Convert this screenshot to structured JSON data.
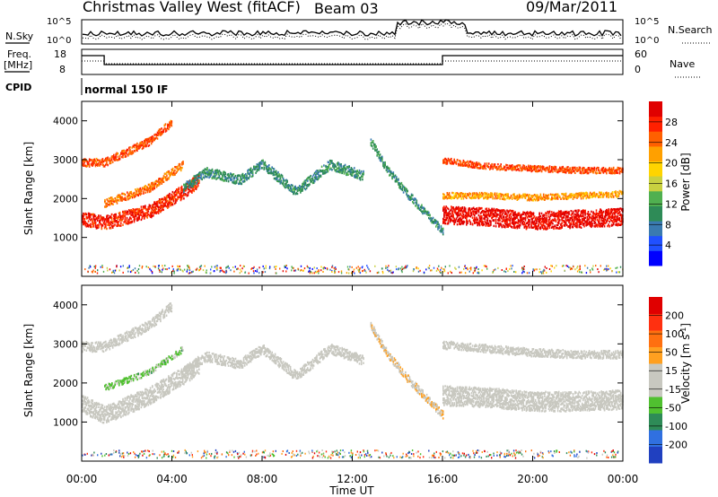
{
  "header": {
    "title": "Christmas Valley West (fitACF)",
    "beam": "Beam 03",
    "date": "09/Mar/2011"
  },
  "noise_panel": {
    "left_label": "N.Sky",
    "right_label": "N.Search",
    "left_ticks": [
      "10^5",
      "10^0"
    ],
    "right_ticks": [
      "10^5",
      "10^0"
    ]
  },
  "freq_panel": {
    "left_label_1": "Freq.",
    "left_label_2": "[MHz]",
    "left_ticks": [
      "18",
      "8"
    ],
    "right_label": "Nave",
    "right_ticks": [
      "60",
      "0"
    ]
  },
  "cpid_panel": {
    "label": "CPID",
    "text": "normal 150 IF"
  },
  "colors": {
    "power_scale": [
      "#0000ff",
      "#2050ff",
      "#3a7ab0",
      "#2e8b57",
      "#50b050",
      "#c8d040",
      "#ffd400",
      "#ffa000",
      "#ff6000",
      "#ff2000",
      "#e00000"
    ],
    "velocity_scale": [
      "#2040c0",
      "#3070e0",
      "#2e8b57",
      "#50c030",
      "#c8c8c0",
      "#c8c8c0",
      "#ffa020",
      "#ff7010",
      "#ff3010",
      "#e00000"
    ],
    "ground_scatter": "#c8c8c0"
  },
  "chart_data": [
    {
      "type": "heatmap",
      "name": "power",
      "ylabel": "Slant Range [km]",
      "ylim": [
        0,
        4500
      ],
      "yticks": [
        "1000",
        "2000",
        "3000",
        "4000"
      ],
      "xlim": [
        0,
        24
      ],
      "colorbar": {
        "label": "Power [dB]",
        "range": [
          0,
          32
        ],
        "ticks": [
          "4",
          "8",
          "12",
          "16",
          "20",
          "24",
          "28"
        ]
      },
      "features": [
        {
          "kind": "band",
          "t": [
            0,
            1,
            3,
            4.5,
            5.2
          ],
          "r": [
            1500,
            1400,
            1700,
            2200,
            2500
          ],
          "width": 350,
          "value": 28
        },
        {
          "kind": "band",
          "t": [
            0,
            1,
            3,
            4
          ],
          "r": [
            2950,
            2950,
            3500,
            4000
          ],
          "width": 200,
          "value": 26
        },
        {
          "kind": "band",
          "t": [
            1,
            3,
            4.5
          ],
          "r": [
            1900,
            2300,
            2900
          ],
          "width": 200,
          "value": 24
        },
        {
          "kind": "band",
          "t": [
            4.5,
            5.5,
            7,
            8,
            9.5,
            11,
            12.5
          ],
          "r": [
            2300,
            2700,
            2500,
            2900,
            2200,
            2900,
            2600
          ],
          "width": 250,
          "value": 10
        },
        {
          "kind": "band",
          "t": [
            12.8,
            13.5,
            14.5,
            15.5,
            16
          ],
          "r": [
            3500,
            2800,
            2100,
            1500,
            1200
          ],
          "width": 200,
          "value": 10
        },
        {
          "kind": "band",
          "t": [
            16,
            18,
            20,
            22,
            24
          ],
          "r": [
            1600,
            1550,
            1450,
            1500,
            1550
          ],
          "width": 450,
          "value": 30
        },
        {
          "kind": "band",
          "t": [
            16,
            18,
            20,
            22,
            24
          ],
          "r": [
            3000,
            2850,
            2800,
            2750,
            2750
          ],
          "width": 150,
          "value": 26
        },
        {
          "kind": "band",
          "t": [
            16,
            18,
            20,
            22,
            24
          ],
          "r": [
            2100,
            2100,
            2050,
            2100,
            2150
          ],
          "width": 150,
          "value": 22
        }
      ]
    },
    {
      "type": "heatmap",
      "name": "velocity",
      "ylabel": "Slant Range [km]",
      "ylim": [
        0,
        4500
      ],
      "yticks": [
        "1000",
        "2000",
        "3000",
        "4000"
      ],
      "xlim": [
        0,
        24
      ],
      "xticks": [
        "00:00",
        "04:00",
        "08:00",
        "12:00",
        "16:00",
        "20:00",
        "00:00"
      ],
      "xlabel": "Time UT",
      "colorbar": {
        "label": "Velocity [m s",
        "label_sup": "-1",
        "label_end": "]",
        "range": [
          -250,
          250
        ],
        "ticks": [
          "200",
          "100",
          "50",
          "15",
          "-15",
          "-50",
          "-100",
          "-200"
        ]
      },
      "features": [
        {
          "kind": "band",
          "t": [
            0,
            1,
            3,
            4.5,
            5.2
          ],
          "r": [
            1500,
            1200,
            1700,
            2200,
            2500
          ],
          "width": 450,
          "value": 0
        },
        {
          "kind": "band",
          "t": [
            0,
            1,
            3,
            4
          ],
          "r": [
            2950,
            2950,
            3500,
            4000
          ],
          "width": 250,
          "value": 0
        },
        {
          "kind": "band",
          "t": [
            1,
            3,
            4.5
          ],
          "r": [
            1900,
            2300,
            2900
          ],
          "width": 150,
          "value": -60
        },
        {
          "kind": "band",
          "t": [
            4.5,
            5.5,
            7,
            8,
            9.5,
            11,
            12.5
          ],
          "r": [
            2300,
            2700,
            2500,
            2900,
            2200,
            2900,
            2600
          ],
          "width": 250,
          "value": 0
        },
        {
          "kind": "band",
          "t": [
            12.8,
            13.5,
            14.5,
            15.5,
            16
          ],
          "r": [
            3500,
            2800,
            2100,
            1500,
            1200
          ],
          "width": 200,
          "value": 40
        },
        {
          "kind": "band",
          "t": [
            16,
            18,
            20,
            22,
            24
          ],
          "r": [
            1700,
            1650,
            1550,
            1550,
            1600
          ],
          "width": 500,
          "value": 0
        },
        {
          "kind": "band",
          "t": [
            16,
            18,
            20,
            22,
            24
          ],
          "r": [
            3000,
            2900,
            2800,
            2750,
            2750
          ],
          "width": 200,
          "value": 0
        }
      ]
    }
  ]
}
